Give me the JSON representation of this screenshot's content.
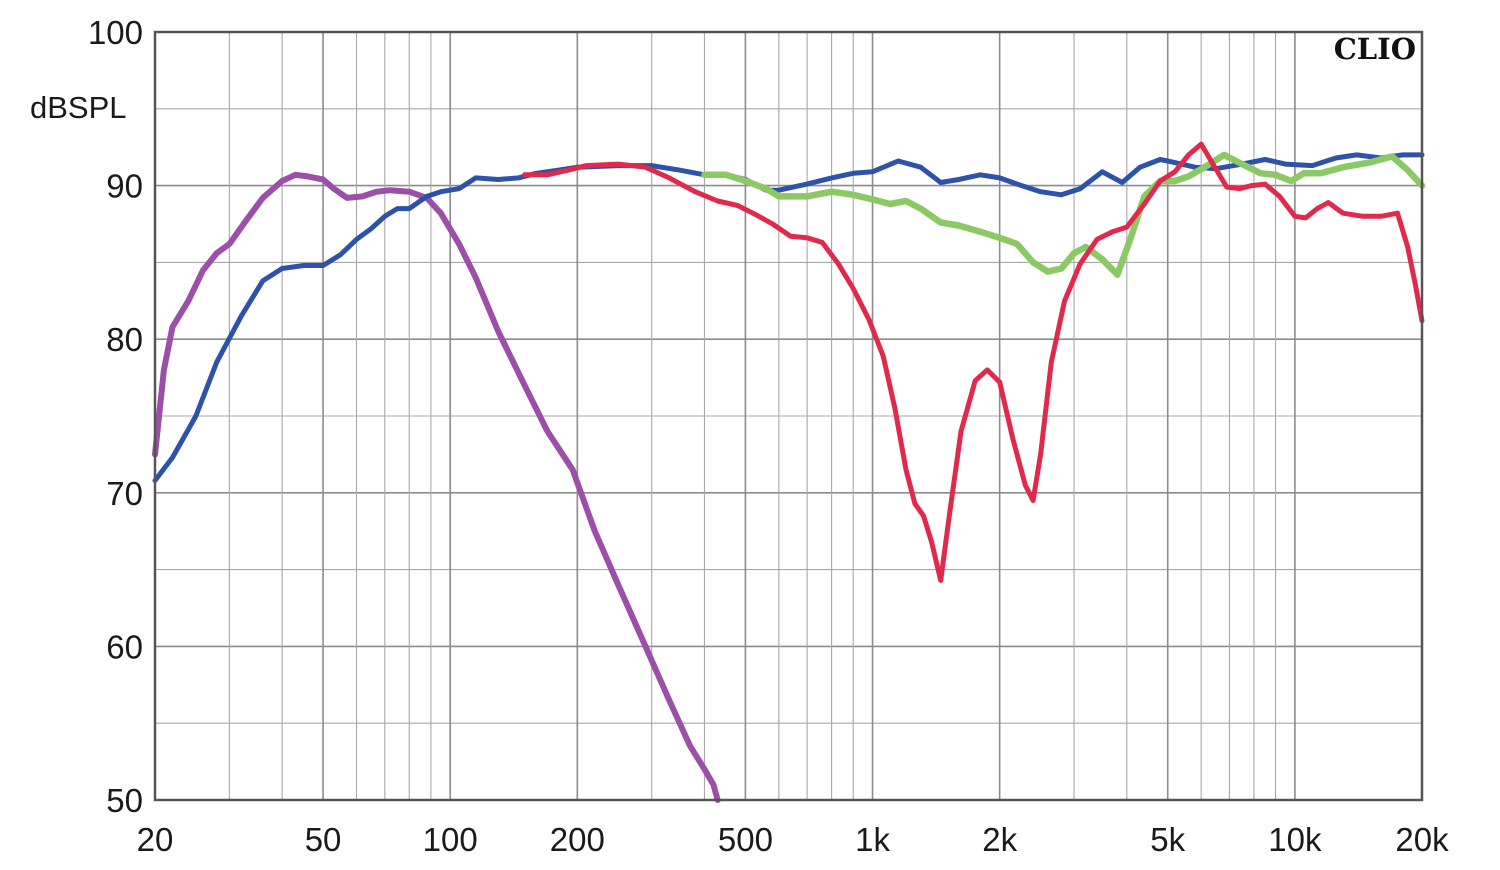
{
  "chart_data": {
    "type": "line",
    "title": "",
    "xlabel": "",
    "ylabel": "dBSPL",
    "watermark": "CLIO",
    "x_scale": "log",
    "xlim": [
      20,
      20000
    ],
    "ylim": [
      50,
      100
    ],
    "grid": true,
    "x_ticks": [
      {
        "value": 20,
        "label": "20"
      },
      {
        "value": 50,
        "label": "50"
      },
      {
        "value": 100,
        "label": "100"
      },
      {
        "value": 200,
        "label": "200"
      },
      {
        "value": 500,
        "label": "500"
      },
      {
        "value": 1000,
        "label": "1k"
      },
      {
        "value": 2000,
        "label": "2k"
      },
      {
        "value": 5000,
        "label": "5k"
      },
      {
        "value": 10000,
        "label": "10k"
      },
      {
        "value": 20000,
        "label": "20k"
      }
    ],
    "y_ticks": [
      {
        "value": 100,
        "label": "100"
      },
      {
        "value": 90,
        "label": "90"
      },
      {
        "value": 80,
        "label": "80"
      },
      {
        "value": 70,
        "label": "70"
      },
      {
        "value": 60,
        "label": "60"
      },
      {
        "value": 50,
        "label": "50"
      }
    ],
    "series": [
      {
        "color": "#9B4FA8",
        "width": 6,
        "points": [
          [
            20,
            72.5
          ],
          [
            21,
            78
          ],
          [
            22,
            80.8
          ],
          [
            24,
            82.5
          ],
          [
            26,
            84.5
          ],
          [
            28,
            85.6
          ],
          [
            30,
            86.2
          ],
          [
            33,
            87.8
          ],
          [
            36,
            89.2
          ],
          [
            40,
            90.3
          ],
          [
            43,
            90.7
          ],
          [
            46,
            90.6
          ],
          [
            50,
            90.4
          ],
          [
            53,
            89.8
          ],
          [
            57,
            89.2
          ],
          [
            62,
            89.3
          ],
          [
            67,
            89.6
          ],
          [
            72,
            89.7
          ],
          [
            80,
            89.6
          ],
          [
            88,
            89.2
          ],
          [
            95,
            88.2
          ],
          [
            105,
            86.2
          ],
          [
            115,
            84
          ],
          [
            130,
            80.5
          ],
          [
            150,
            77
          ],
          [
            170,
            74
          ],
          [
            195,
            71.5
          ],
          [
            220,
            67.5
          ],
          [
            250,
            64
          ],
          [
            290,
            60
          ],
          [
            330,
            56.5
          ],
          [
            370,
            53.5
          ],
          [
            400,
            52
          ],
          [
            420,
            51
          ],
          [
            430,
            50
          ]
        ]
      },
      {
        "color": "#2D52A8",
        "width": 5,
        "points": [
          [
            20,
            70.8
          ],
          [
            22,
            72.3
          ],
          [
            25,
            75
          ],
          [
            28,
            78.5
          ],
          [
            32,
            81.5
          ],
          [
            36,
            83.8
          ],
          [
            40,
            84.6
          ],
          [
            45,
            84.8
          ],
          [
            50,
            84.8
          ],
          [
            55,
            85.5
          ],
          [
            60,
            86.5
          ],
          [
            65,
            87.2
          ],
          [
            70,
            88
          ],
          [
            75,
            88.5
          ],
          [
            80,
            88.5
          ],
          [
            88,
            89.3
          ],
          [
            95,
            89.6
          ],
          [
            105,
            89.8
          ],
          [
            115,
            90.5
          ],
          [
            130,
            90.4
          ],
          [
            145,
            90.5
          ],
          [
            160,
            90.8
          ],
          [
            180,
            91
          ],
          [
            200,
            91.2
          ],
          [
            250,
            91.3
          ],
          [
            300,
            91.3
          ],
          [
            350,
            91
          ],
          [
            400,
            90.7
          ],
          [
            450,
            90.7
          ],
          [
            500,
            90.4
          ],
          [
            560,
            89.7
          ],
          [
            600,
            89.7
          ],
          [
            700,
            90.1
          ],
          [
            800,
            90.5
          ],
          [
            900,
            90.8
          ],
          [
            1000,
            90.9
          ],
          [
            1150,
            91.6
          ],
          [
            1300,
            91.2
          ],
          [
            1450,
            90.2
          ],
          [
            1600,
            90.4
          ],
          [
            1800,
            90.7
          ],
          [
            2000,
            90.5
          ],
          [
            2200,
            90.1
          ],
          [
            2500,
            89.6
          ],
          [
            2800,
            89.4
          ],
          [
            3100,
            89.8
          ],
          [
            3500,
            90.9
          ],
          [
            3900,
            90.2
          ],
          [
            4300,
            91.2
          ],
          [
            4800,
            91.7
          ],
          [
            5200,
            91.5
          ],
          [
            5800,
            91.2
          ],
          [
            6500,
            91.1
          ],
          [
            7500,
            91.4
          ],
          [
            8500,
            91.7
          ],
          [
            9500,
            91.4
          ],
          [
            11000,
            91.3
          ],
          [
            12500,
            91.8
          ],
          [
            14000,
            92
          ],
          [
            16000,
            91.8
          ],
          [
            18000,
            92
          ],
          [
            20000,
            92
          ]
        ]
      },
      {
        "color": "#8BC964",
        "width": 6.5,
        "points": [
          [
            400,
            90.7
          ],
          [
            450,
            90.7
          ],
          [
            500,
            90.3
          ],
          [
            560,
            89.8
          ],
          [
            600,
            89.3
          ],
          [
            700,
            89.3
          ],
          [
            800,
            89.6
          ],
          [
            900,
            89.4
          ],
          [
            1000,
            89.1
          ],
          [
            1100,
            88.8
          ],
          [
            1200,
            89
          ],
          [
            1300,
            88.5
          ],
          [
            1450,
            87.6
          ],
          [
            1600,
            87.4
          ],
          [
            1800,
            87
          ],
          [
            2000,
            86.6
          ],
          [
            2200,
            86.2
          ],
          [
            2400,
            85
          ],
          [
            2600,
            84.4
          ],
          [
            2800,
            84.6
          ],
          [
            3000,
            85.6
          ],
          [
            3200,
            86
          ],
          [
            3500,
            85.2
          ],
          [
            3800,
            84.2
          ],
          [
            4100,
            86.7
          ],
          [
            4400,
            89.3
          ],
          [
            4800,
            90.3
          ],
          [
            5200,
            90.3
          ],
          [
            5600,
            90.6
          ],
          [
            6200,
            91.3
          ],
          [
            6800,
            92
          ],
          [
            7500,
            91.4
          ],
          [
            8300,
            90.8
          ],
          [
            9000,
            90.7
          ],
          [
            9800,
            90.3
          ],
          [
            10500,
            90.8
          ],
          [
            11500,
            90.8
          ],
          [
            13000,
            91.2
          ],
          [
            15000,
            91.5
          ],
          [
            17000,
            91.9
          ],
          [
            18500,
            91
          ],
          [
            20000,
            90
          ]
        ]
      },
      {
        "color": "#E0294D",
        "width": 5,
        "points": [
          [
            150,
            90.7
          ],
          [
            170,
            90.7
          ],
          [
            190,
            91
          ],
          [
            210,
            91.3
          ],
          [
            250,
            91.4
          ],
          [
            290,
            91.2
          ],
          [
            330,
            90.5
          ],
          [
            380,
            89.6
          ],
          [
            430,
            89
          ],
          [
            480,
            88.7
          ],
          [
            530,
            88.1
          ],
          [
            580,
            87.5
          ],
          [
            640,
            86.7
          ],
          [
            700,
            86.6
          ],
          [
            760,
            86.3
          ],
          [
            830,
            84.9
          ],
          [
            900,
            83.3
          ],
          [
            980,
            81.3
          ],
          [
            1060,
            78.9
          ],
          [
            1130,
            75.5
          ],
          [
            1200,
            71.5
          ],
          [
            1260,
            69.3
          ],
          [
            1320,
            68.5
          ],
          [
            1380,
            66.8
          ],
          [
            1450,
            64.3
          ],
          [
            1520,
            68.5
          ],
          [
            1620,
            74
          ],
          [
            1750,
            77.3
          ],
          [
            1870,
            78
          ],
          [
            2000,
            77.2
          ],
          [
            2150,
            73.5
          ],
          [
            2300,
            70.5
          ],
          [
            2400,
            69.5
          ],
          [
            2500,
            72.5
          ],
          [
            2650,
            78.5
          ],
          [
            2850,
            82.5
          ],
          [
            3100,
            84.9
          ],
          [
            3400,
            86.5
          ],
          [
            3700,
            87
          ],
          [
            4000,
            87.3
          ],
          [
            4400,
            88.8
          ],
          [
            4800,
            90.3
          ],
          [
            5200,
            90.9
          ],
          [
            5600,
            92
          ],
          [
            6000,
            92.7
          ],
          [
            6400,
            91.4
          ],
          [
            6900,
            89.9
          ],
          [
            7400,
            89.8
          ],
          [
            7900,
            90
          ],
          [
            8500,
            90.1
          ],
          [
            9200,
            89.3
          ],
          [
            10000,
            88
          ],
          [
            10600,
            87.9
          ],
          [
            11300,
            88.5
          ],
          [
            12000,
            88.9
          ],
          [
            13000,
            88.2
          ],
          [
            14500,
            88
          ],
          [
            16000,
            88
          ],
          [
            17500,
            88.2
          ],
          [
            18500,
            86
          ],
          [
            19300,
            83.5
          ],
          [
            20000,
            81.2
          ]
        ]
      }
    ]
  }
}
